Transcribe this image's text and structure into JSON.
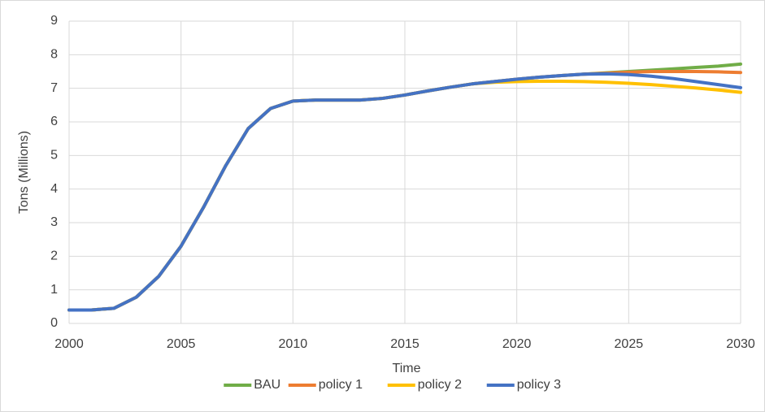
{
  "chart_data": {
    "type": "line",
    "x_label": "Time",
    "y_label": "Tons (Millions)",
    "x": [
      2000,
      2001,
      2002,
      2003,
      2004,
      2005,
      2006,
      2007,
      2008,
      2009,
      2010,
      2011,
      2012,
      2013,
      2014,
      2015,
      2016,
      2017,
      2018,
      2019,
      2020,
      2021,
      2022,
      2023,
      2024,
      2025,
      2026,
      2027,
      2028,
      2029,
      2030
    ],
    "series": [
      {
        "name": "BAU",
        "color": "#70ad47",
        "values": [
          0.4,
          0.4,
          0.45,
          0.78,
          1.4,
          2.3,
          3.45,
          4.7,
          5.8,
          6.4,
          6.62,
          6.65,
          6.65,
          6.65,
          6.7,
          6.8,
          6.92,
          7.03,
          7.13,
          7.2,
          7.27,
          7.33,
          7.38,
          7.42,
          7.46,
          7.5,
          7.54,
          7.58,
          7.62,
          7.66,
          7.72
        ]
      },
      {
        "name": "policy 1",
        "color": "#ed7d31",
        "values": [
          0.4,
          0.4,
          0.45,
          0.78,
          1.4,
          2.3,
          3.45,
          4.7,
          5.8,
          6.4,
          6.62,
          6.65,
          6.65,
          6.65,
          6.7,
          6.8,
          6.92,
          7.03,
          7.13,
          7.2,
          7.27,
          7.33,
          7.38,
          7.42,
          7.45,
          7.48,
          7.5,
          7.5,
          7.5,
          7.49,
          7.47
        ]
      },
      {
        "name": "policy 2",
        "color": "#ffc000",
        "values": [
          0.4,
          0.4,
          0.45,
          0.78,
          1.4,
          2.3,
          3.45,
          4.7,
          5.8,
          6.4,
          6.62,
          6.65,
          6.65,
          6.65,
          6.7,
          6.8,
          6.92,
          7.03,
          7.13,
          7.18,
          7.2,
          7.21,
          7.21,
          7.2,
          7.18,
          7.15,
          7.11,
          7.06,
          7.01,
          6.95,
          6.88
        ]
      },
      {
        "name": "policy 3",
        "color": "#4472c4",
        "values": [
          0.4,
          0.4,
          0.45,
          0.78,
          1.4,
          2.3,
          3.45,
          4.7,
          5.8,
          6.4,
          6.62,
          6.65,
          6.65,
          6.65,
          6.7,
          6.8,
          6.92,
          7.03,
          7.13,
          7.2,
          7.27,
          7.33,
          7.38,
          7.42,
          7.43,
          7.41,
          7.36,
          7.29,
          7.2,
          7.11,
          7.02
        ]
      }
    ],
    "xlim": [
      2000,
      2030
    ],
    "xticks": [
      2000,
      2005,
      2010,
      2015,
      2020,
      2025,
      2030
    ],
    "ylim": [
      0,
      9
    ],
    "yticks": [
      0,
      1,
      2,
      3,
      4,
      5,
      6,
      7,
      8,
      9
    ],
    "grid": true,
    "legend": "bottom"
  }
}
